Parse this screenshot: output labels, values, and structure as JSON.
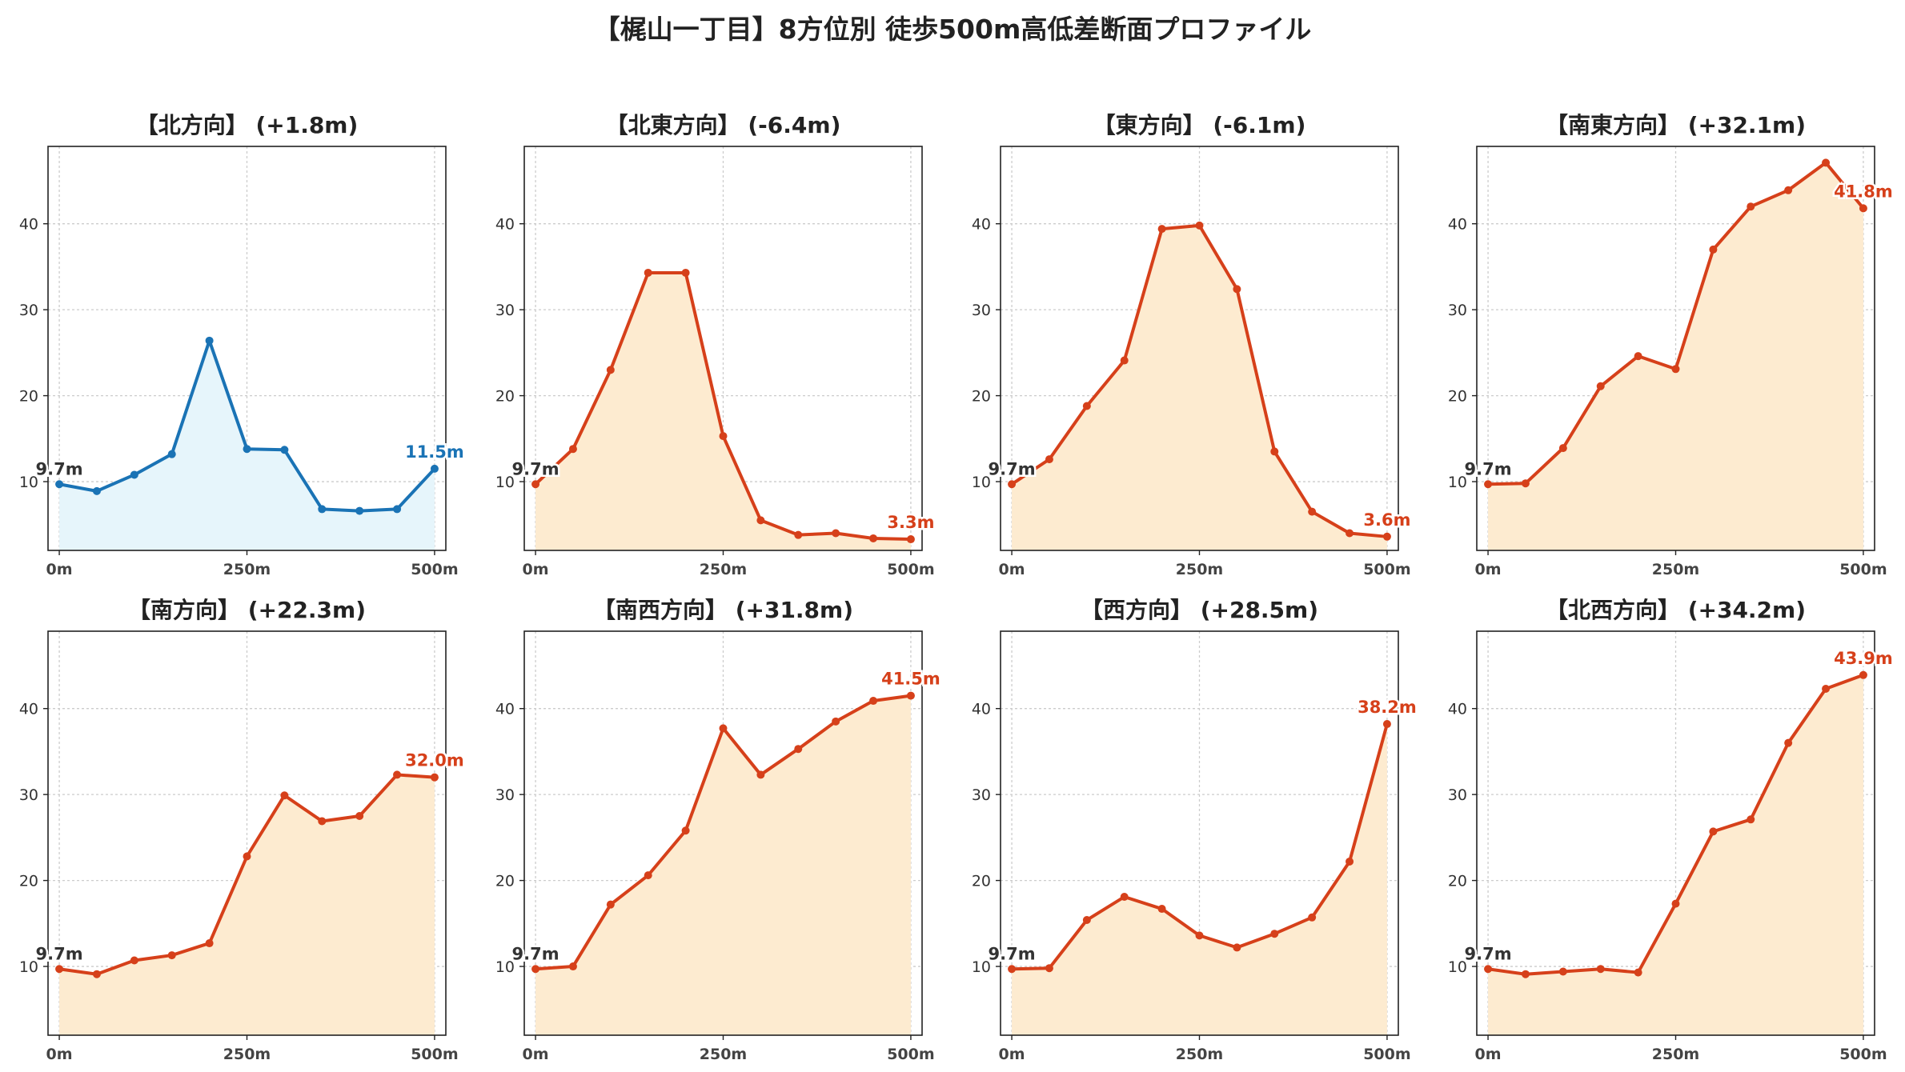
{
  "title": "【梶山一丁目】8方位別 徒歩500m高低差断面プロファイル",
  "colors": {
    "up_line": "#d6401a",
    "up_fill": "#fdebd0",
    "down_line": "#1a73b5",
    "down_fill": "#e6f5fb",
    "grid": "#cccccc",
    "axis": "#222222"
  },
  "chart_data": [
    {
      "type": "area",
      "title": "【北方向】 (+1.8m)",
      "trend": "down",
      "x": [
        0,
        50,
        100,
        150,
        200,
        250,
        300,
        350,
        400,
        450,
        500
      ],
      "y": [
        9.7,
        8.9,
        10.8,
        13.2,
        26.4,
        13.8,
        13.7,
        6.8,
        6.6,
        6.8,
        11.5
      ],
      "start_label": "9.7m",
      "end_label": "11.5m",
      "xticks": [
        "0m",
        "250m",
        "500m"
      ],
      "yticks": [
        10,
        20,
        30,
        40
      ],
      "xlim": [
        -15,
        515
      ],
      "ylim": [
        2,
        49
      ],
      "grid": true
    },
    {
      "type": "area",
      "title": "【北東方向】 (-6.4m)",
      "trend": "up",
      "x": [
        0,
        50,
        100,
        150,
        200,
        250,
        300,
        350,
        400,
        450,
        500
      ],
      "y": [
        9.7,
        13.8,
        23.0,
        34.3,
        34.3,
        15.3,
        5.5,
        3.8,
        4.0,
        3.4,
        3.3
      ],
      "start_label": "9.7m",
      "end_label": "3.3m",
      "xticks": [
        "0m",
        "250m",
        "500m"
      ],
      "yticks": [
        10,
        20,
        30,
        40
      ],
      "xlim": [
        -15,
        515
      ],
      "ylim": [
        2,
        49
      ],
      "grid": true
    },
    {
      "type": "area",
      "title": "【東方向】 (-6.1m)",
      "trend": "up",
      "x": [
        0,
        50,
        100,
        150,
        200,
        250,
        300,
        350,
        400,
        450,
        500
      ],
      "y": [
        9.7,
        12.6,
        18.8,
        24.1,
        39.4,
        39.8,
        32.4,
        13.5,
        6.5,
        4.0,
        3.6
      ],
      "start_label": "9.7m",
      "end_label": "3.6m",
      "xticks": [
        "0m",
        "250m",
        "500m"
      ],
      "yticks": [
        10,
        20,
        30,
        40
      ],
      "xlim": [
        -15,
        515
      ],
      "ylim": [
        2,
        49
      ],
      "grid": true
    },
    {
      "type": "area",
      "title": "【南東方向】 (+32.1m)",
      "trend": "up",
      "x": [
        0,
        50,
        100,
        150,
        200,
        250,
        300,
        350,
        400,
        450,
        500
      ],
      "y": [
        9.7,
        9.8,
        13.9,
        21.1,
        24.6,
        23.1,
        37.0,
        42.0,
        43.9,
        47.1,
        41.8
      ],
      "start_label": "9.7m",
      "end_label": "41.8m",
      "xticks": [
        "0m",
        "250m",
        "500m"
      ],
      "yticks": [
        10,
        20,
        30,
        40
      ],
      "xlim": [
        -15,
        515
      ],
      "ylim": [
        2,
        49
      ],
      "grid": true
    },
    {
      "type": "area",
      "title": "【南方向】 (+22.3m)",
      "trend": "up",
      "x": [
        0,
        50,
        100,
        150,
        200,
        250,
        300,
        350,
        400,
        450,
        500
      ],
      "y": [
        9.7,
        9.1,
        10.7,
        11.3,
        12.7,
        22.8,
        29.9,
        26.9,
        27.5,
        32.3,
        32.0
      ],
      "start_label": "9.7m",
      "end_label": "32.0m",
      "xticks": [
        "0m",
        "250m",
        "500m"
      ],
      "yticks": [
        10,
        20,
        30,
        40
      ],
      "xlim": [
        -15,
        515
      ],
      "ylim": [
        2,
        49
      ],
      "grid": true
    },
    {
      "type": "area",
      "title": "【南西方向】 (+31.8m)",
      "trend": "up",
      "x": [
        0,
        50,
        100,
        150,
        200,
        250,
        300,
        350,
        400,
        450,
        500
      ],
      "y": [
        9.7,
        10.0,
        17.2,
        20.6,
        25.8,
        37.7,
        32.3,
        35.3,
        38.5,
        40.9,
        41.5
      ],
      "start_label": "9.7m",
      "end_label": "41.5m",
      "xticks": [
        "0m",
        "250m",
        "500m"
      ],
      "yticks": [
        10,
        20,
        30,
        40
      ],
      "xlim": [
        -15,
        515
      ],
      "ylim": [
        2,
        49
      ],
      "grid": true
    },
    {
      "type": "area",
      "title": "【西方向】 (+28.5m)",
      "trend": "up",
      "x": [
        0,
        50,
        100,
        150,
        200,
        250,
        300,
        350,
        400,
        450,
        500
      ],
      "y": [
        9.7,
        9.8,
        15.4,
        18.1,
        16.7,
        13.6,
        12.2,
        13.8,
        15.7,
        22.2,
        38.2
      ],
      "start_label": "9.7m",
      "end_label": "38.2m",
      "xticks": [
        "0m",
        "250m",
        "500m"
      ],
      "yticks": [
        10,
        20,
        30,
        40
      ],
      "xlim": [
        -15,
        515
      ],
      "ylim": [
        2,
        49
      ],
      "grid": true
    },
    {
      "type": "area",
      "title": "【北西方向】 (+34.2m)",
      "trend": "up",
      "x": [
        0,
        50,
        100,
        150,
        200,
        250,
        300,
        350,
        400,
        450,
        500
      ],
      "y": [
        9.7,
        9.1,
        9.4,
        9.7,
        9.3,
        17.3,
        25.7,
        27.1,
        36.0,
        42.3,
        43.9
      ],
      "start_label": "9.7m",
      "end_label": "43.9m",
      "xticks": [
        "0m",
        "250m",
        "500m"
      ],
      "yticks": [
        10,
        20,
        30,
        40
      ],
      "xlim": [
        -15,
        515
      ],
      "ylim": [
        2,
        49
      ],
      "grid": true
    }
  ]
}
